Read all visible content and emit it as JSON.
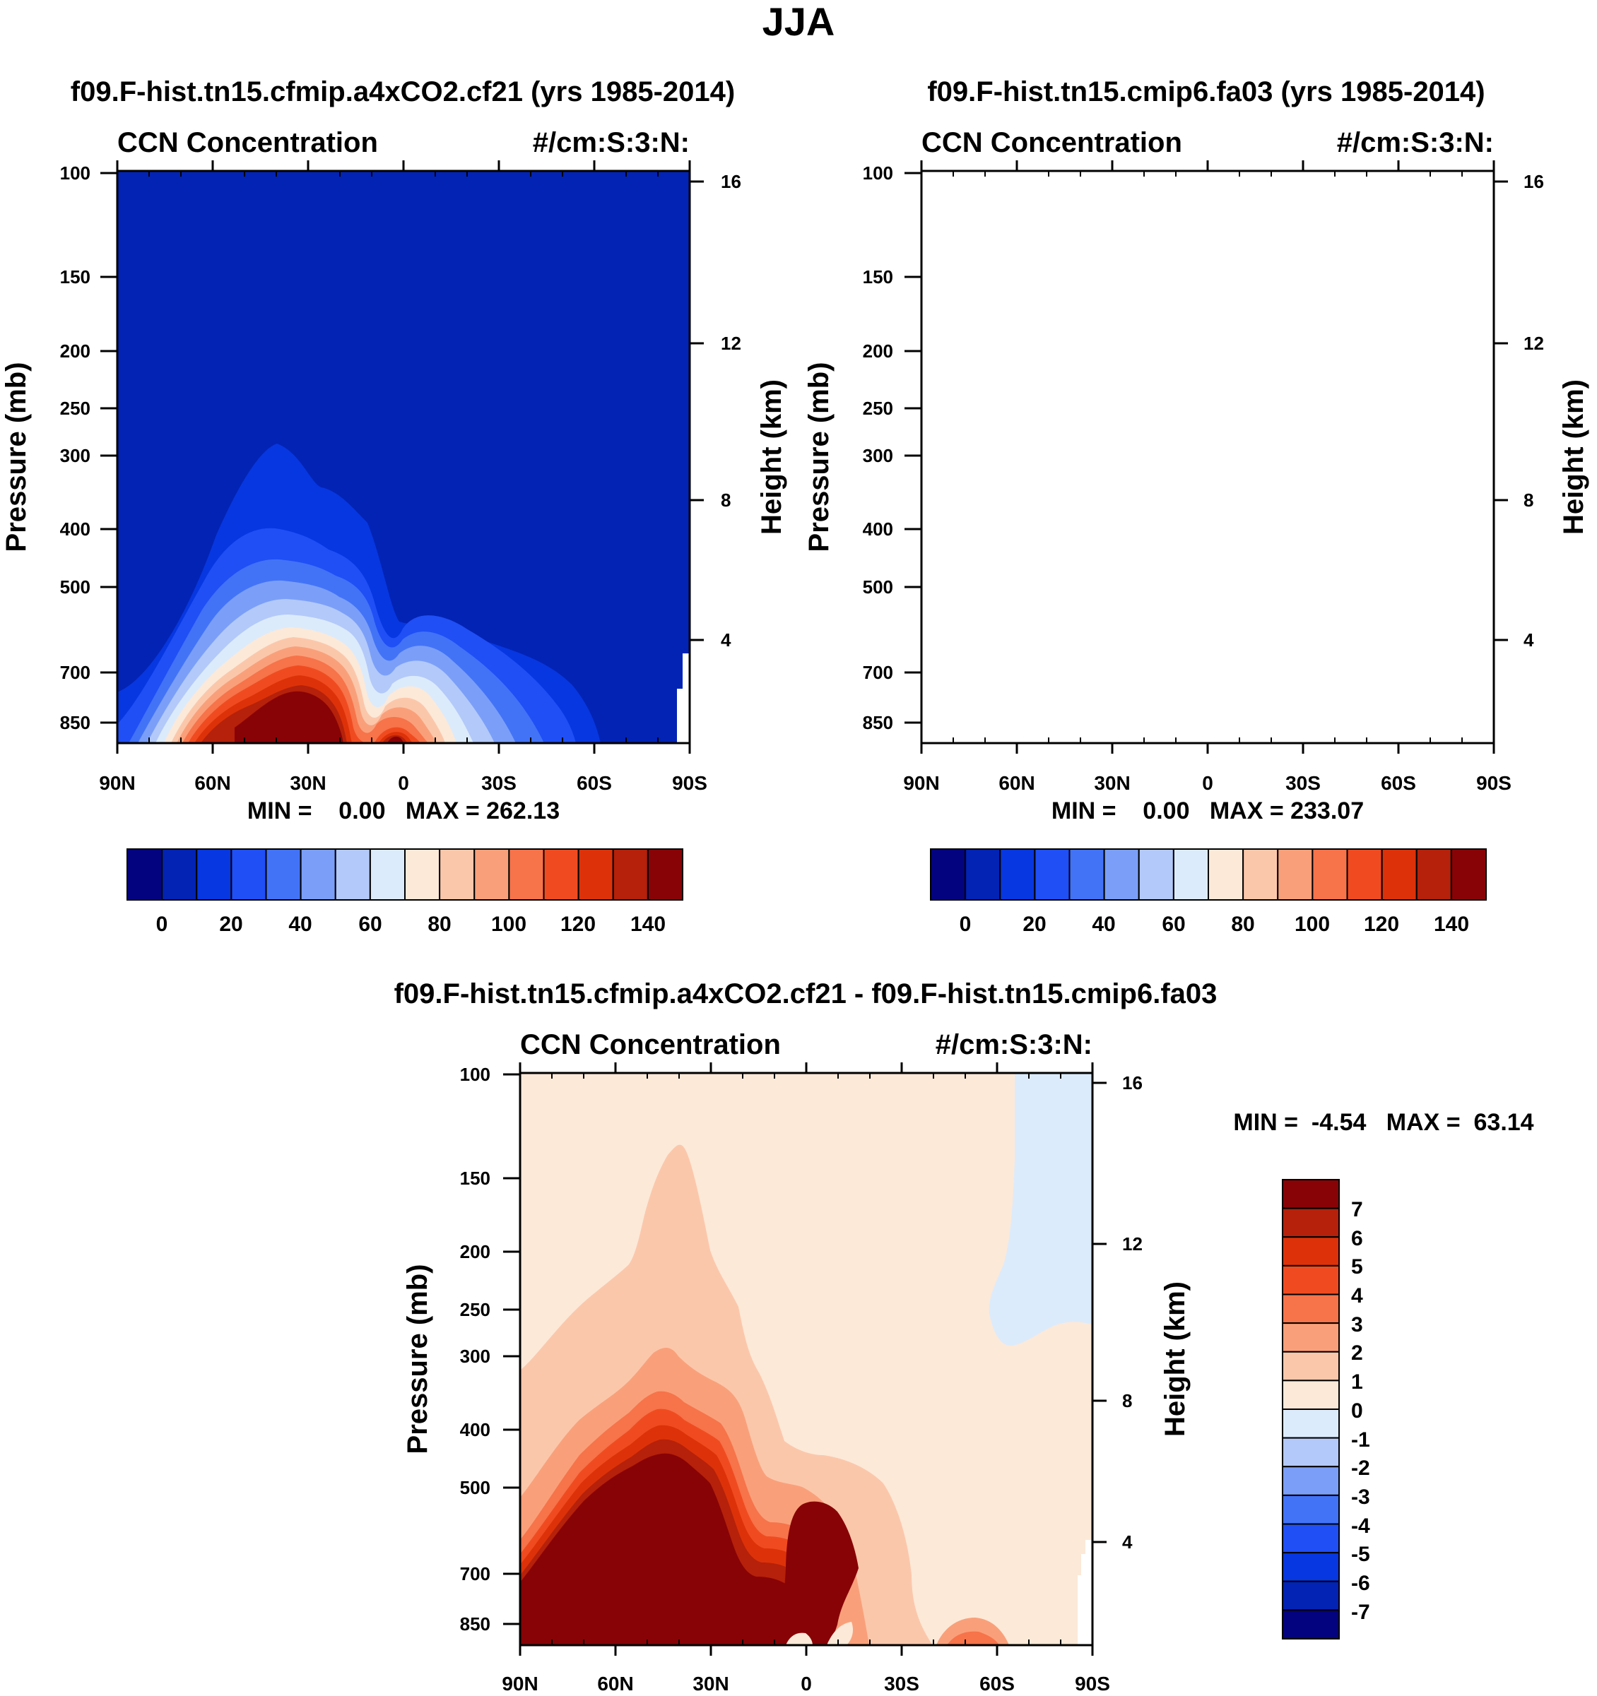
{
  "figure_title": "JJA",
  "chart_data": [
    {
      "id": "control",
      "type": "heatmap",
      "title": "f09.F-hist.tn15.cfmip.a4xCO2.cf21 (yrs 1985-2014)",
      "left_label": "CCN Concentration",
      "right_label": "#/cm:S:3:N:",
      "ylabel": "Pressure (mb)",
      "y2label": "Height (km)",
      "x_ticks": [
        "90N",
        "60N",
        "30N",
        "0",
        "30S",
        "60S",
        "90S"
      ],
      "y_ticks": [
        "100",
        "150",
        "200",
        "250",
        "300",
        "400",
        "500",
        "700",
        "850"
      ],
      "y2_ticks": [
        "16",
        "12",
        "8",
        "4"
      ],
      "stats": "MIN =    0.00   MAX = 262.13",
      "colorbar": {
        "orientation": "horizontal",
        "colors": [
          "#030380",
          "#0323b4",
          "#0737e0",
          "#1f4ff5",
          "#4273f7",
          "#7b9ff8",
          "#b3c9f9",
          "#dcebfb",
          "#fce9d8",
          "#fbc7ab",
          "#f9a07a",
          "#f7734a",
          "#f04b20",
          "#dd3209",
          "#b5210a",
          "#880306"
        ],
        "labels": [
          "0",
          "20",
          "40",
          "60",
          "80",
          "100",
          "120",
          "140"
        ]
      }
    },
    {
      "id": "test",
      "type": "heatmap",
      "title": "f09.F-hist.tn15.cmip6.fa03 (yrs 1985-2014)",
      "left_label": "CCN Concentration",
      "right_label": "#/cm:S:3:N:",
      "ylabel": "Pressure (mb)",
      "y2label": "Height (km)",
      "x_ticks": [
        "90N",
        "60N",
        "30N",
        "0",
        "30S",
        "60S",
        "90S"
      ],
      "y_ticks": [
        "100",
        "150",
        "200",
        "250",
        "300",
        "400",
        "500",
        "700",
        "850"
      ],
      "y2_ticks": [
        "16",
        "12",
        "8",
        "4"
      ],
      "stats": "MIN =    0.00   MAX = 233.07",
      "colorbar": {
        "orientation": "horizontal",
        "colors": [
          "#030380",
          "#0323b4",
          "#0737e0",
          "#1f4ff5",
          "#4273f7",
          "#7b9ff8",
          "#b3c9f9",
          "#dcebfb",
          "#fce9d8",
          "#fbc7ab",
          "#f9a07a",
          "#f7734a",
          "#f04b20",
          "#dd3209",
          "#b5210a",
          "#880306"
        ],
        "labels": [
          "0",
          "20",
          "40",
          "60",
          "80",
          "100",
          "120",
          "140"
        ]
      }
    },
    {
      "id": "diff",
      "type": "heatmap",
      "title": "f09.F-hist.tn15.cfmip.a4xCO2.cf21 - f09.F-hist.tn15.cmip6.fa03",
      "left_label": "CCN Concentration",
      "right_label": "#/cm:S:3:N:",
      "ylabel": "Pressure (mb)",
      "y2label": "Height (km)",
      "x_ticks": [
        "90N",
        "60N",
        "30N",
        "0",
        "30S",
        "60S",
        "90S"
      ],
      "y_ticks": [
        "100",
        "150",
        "200",
        "250",
        "300",
        "400",
        "500",
        "700",
        "850"
      ],
      "y2_ticks": [
        "16",
        "12",
        "8",
        "4"
      ],
      "stats": "MIN =  -4.54   MAX =  63.14",
      "colorbar": {
        "orientation": "vertical",
        "colors": [
          "#880306",
          "#b5210a",
          "#dd3209",
          "#f04b20",
          "#f7734a",
          "#f9a07a",
          "#fbc7ab",
          "#fce9d8",
          "#dcebfb",
          "#b3c9f9",
          "#7b9ff8",
          "#4273f7",
          "#1f4ff5",
          "#0737e0",
          "#0323b4",
          "#030380"
        ],
        "labels": [
          "7",
          "6",
          "5",
          "4",
          "3",
          "2",
          "1",
          "0",
          "-1",
          "-2",
          "-3",
          "-4",
          "-5",
          "-6",
          "-7"
        ]
      }
    }
  ]
}
